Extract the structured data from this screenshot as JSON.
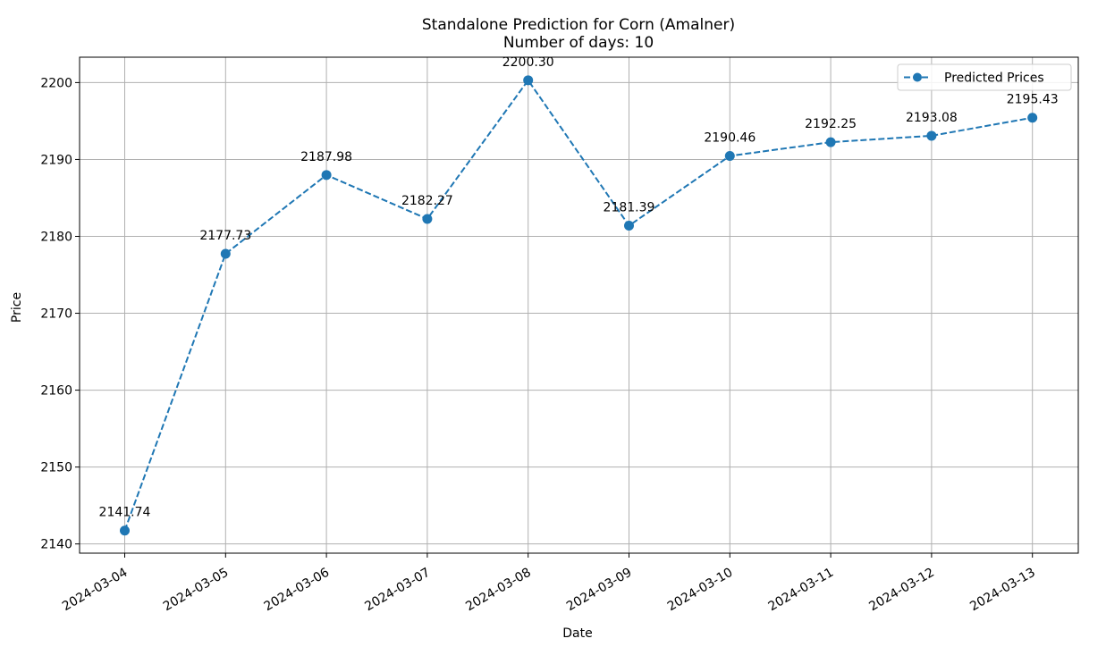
{
  "chart_data": {
    "type": "line",
    "title": "Standalone Prediction for Corn (Amalner)",
    "subtitle": "Number of days: 10",
    "xlabel": "Date",
    "ylabel": "Price",
    "categories": [
      "2024-03-04",
      "2024-03-05",
      "2024-03-06",
      "2024-03-07",
      "2024-03-08",
      "2024-03-09",
      "2024-03-10",
      "2024-03-11",
      "2024-03-12",
      "2024-03-13"
    ],
    "series": [
      {
        "name": "Predicted Prices",
        "values": [
          2141.74,
          2177.73,
          2187.98,
          2182.27,
          2200.3,
          2181.39,
          2190.46,
          2192.25,
          2193.08,
          2195.43
        ],
        "value_labels": [
          "2141.74",
          "2177.73",
          "2187.98",
          "2182.27",
          "2200.30",
          "2181.39",
          "2190.46",
          "2192.25",
          "2193.08",
          "2195.43"
        ],
        "color": "#1f77b4",
        "line_style": "dashed",
        "marker": "circle"
      }
    ],
    "ylim": [
      2138.8,
      2203.3
    ],
    "yticks": [
      2140,
      2150,
      2160,
      2170,
      2180,
      2190,
      2200
    ],
    "grid": true,
    "legend": "top-right"
  }
}
